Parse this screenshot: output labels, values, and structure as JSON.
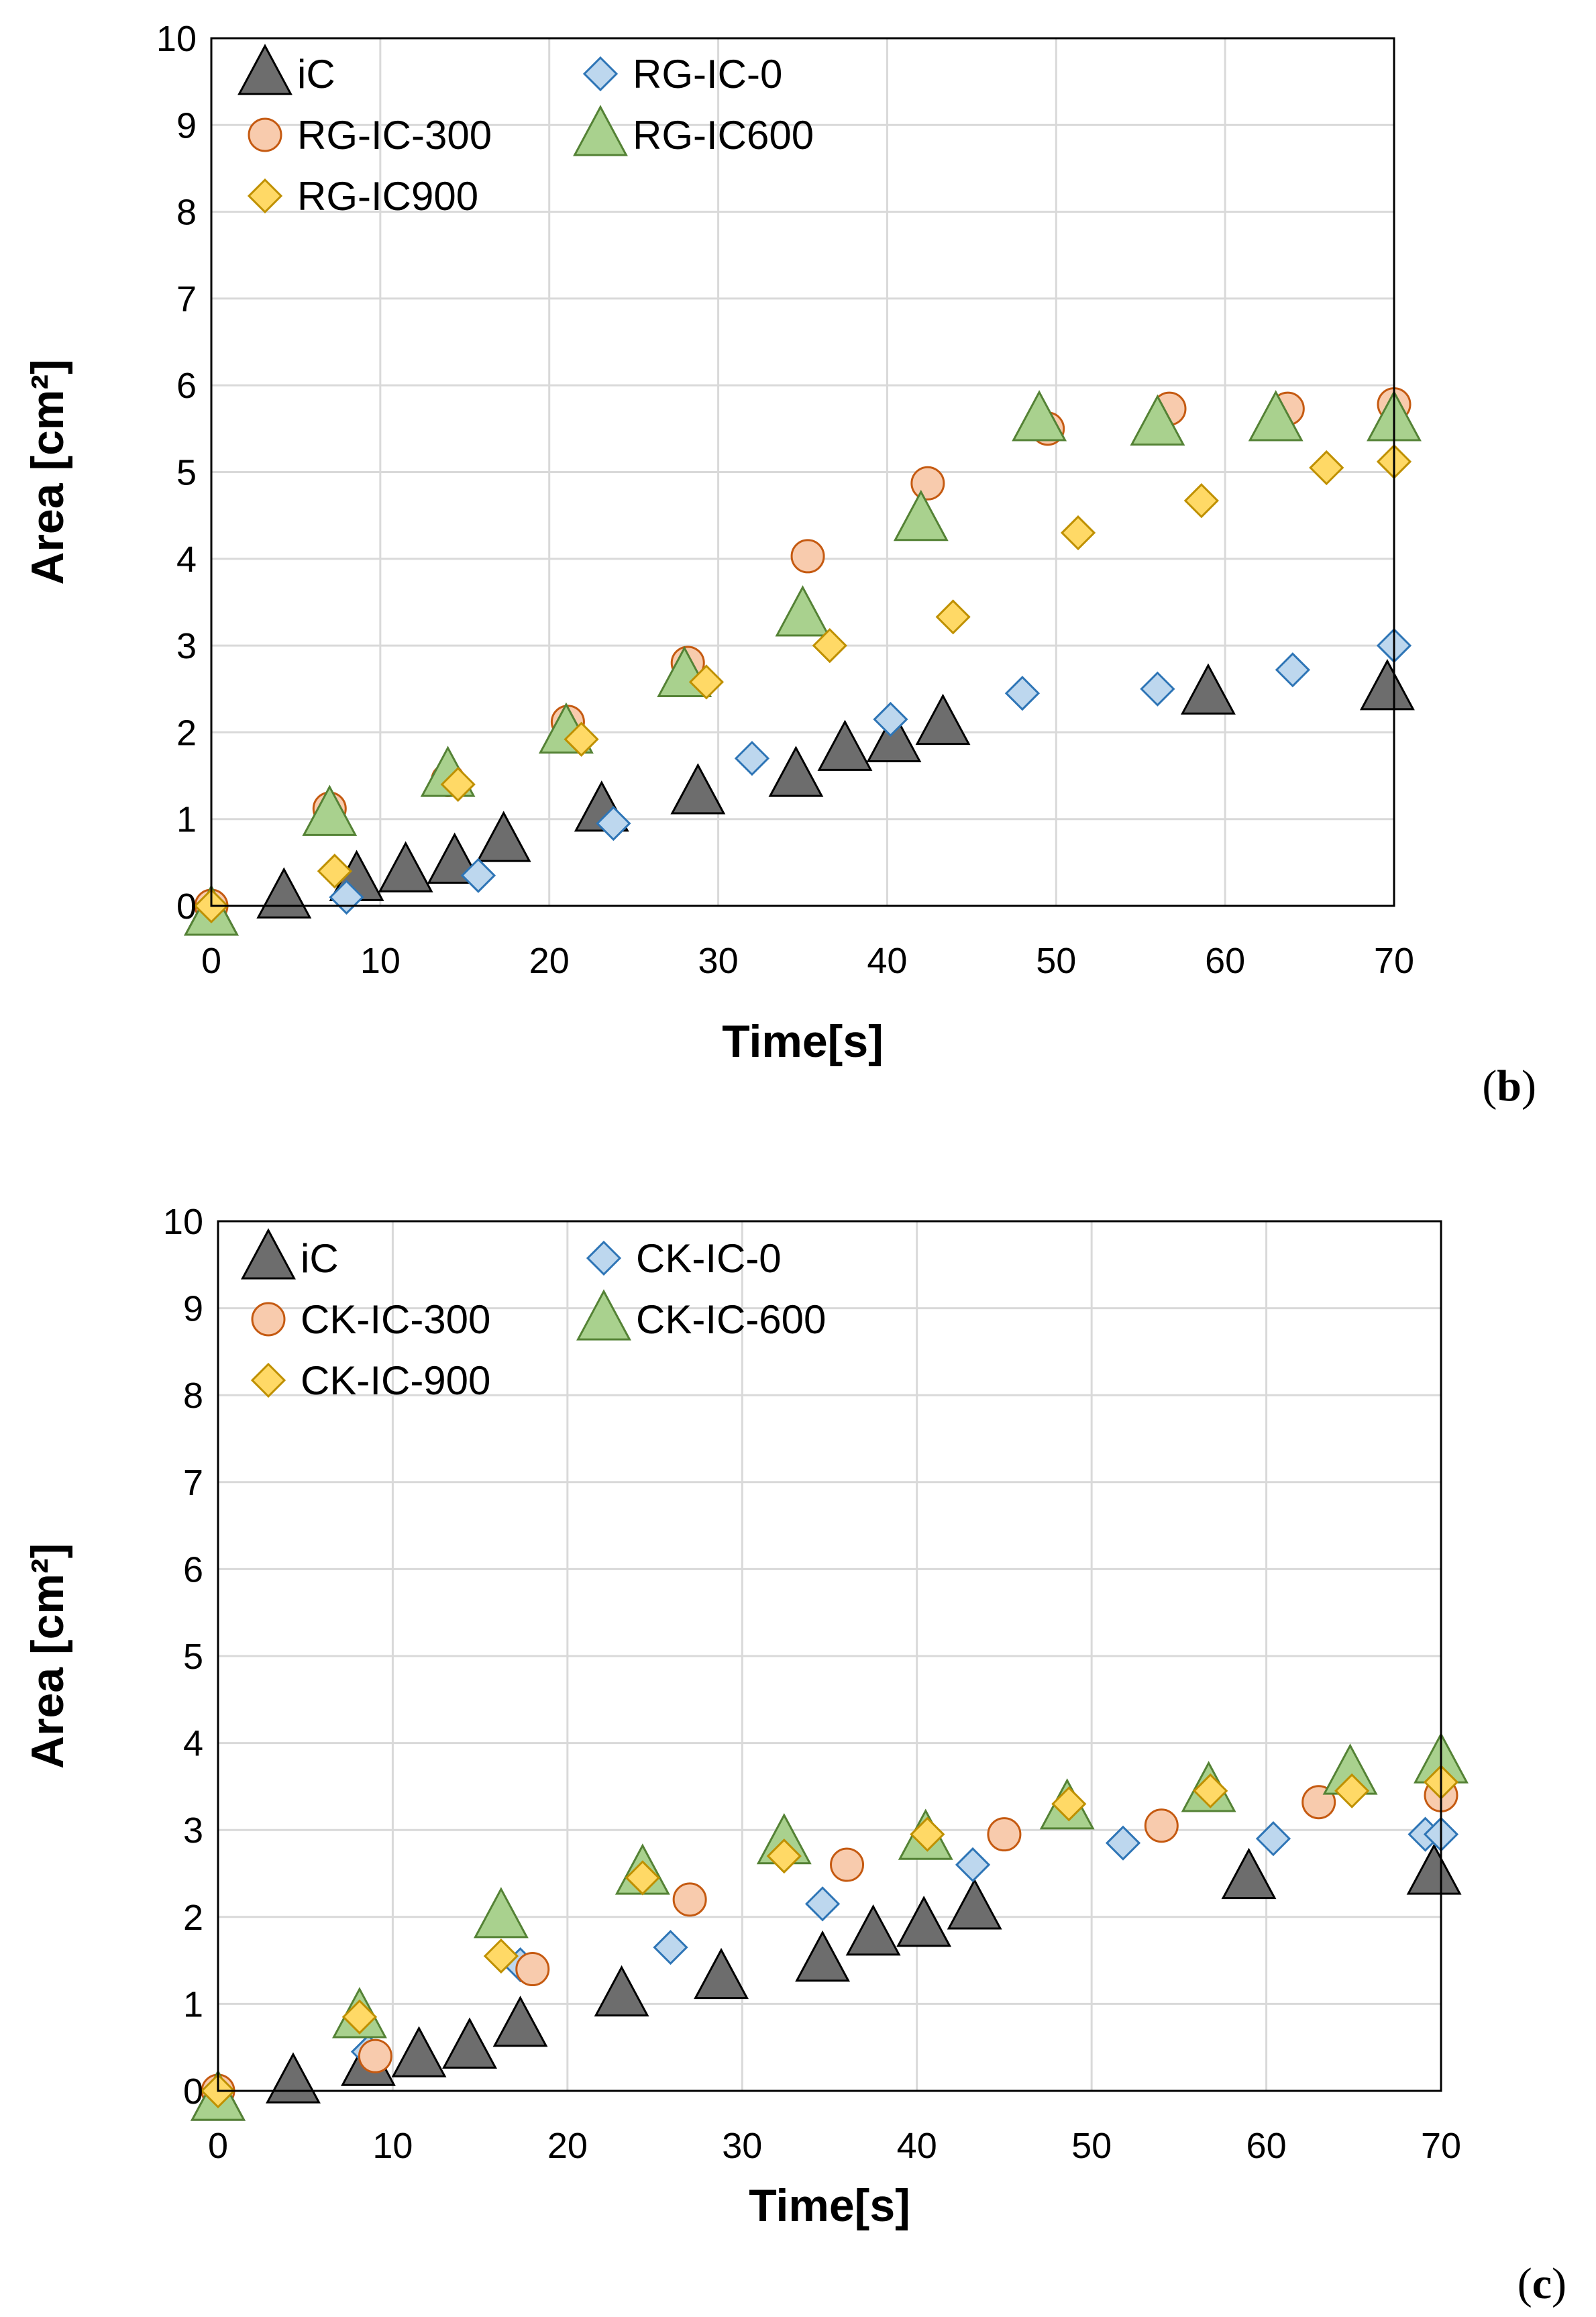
{
  "chart_data": [
    {
      "type": "scatter",
      "panel_label": "b",
      "title": "",
      "xlabel": "Time[s]",
      "ylabel": "Area [cm²]",
      "xlim": [
        0,
        70
      ],
      "ylim": [
        0,
        10
      ],
      "xticks": [
        0,
        10,
        20,
        30,
        40,
        50,
        60,
        70
      ],
      "yticks": [
        0,
        1,
        2,
        3,
        4,
        5,
        6,
        7,
        8,
        9,
        10
      ],
      "grid": true,
      "legend_position": "top-left",
      "series": [
        {
          "name": "iC",
          "marker": "triangle",
          "color": "#6d6d6d",
          "x": [
            0,
            4.3,
            8.6,
            11.5,
            14.4,
            17.3,
            23.1,
            28.8,
            34.6,
            37.5,
            40.4,
            43.3,
            59,
            69.6
          ],
          "y": [
            -0.1,
            0.1,
            0.3,
            0.4,
            0.5,
            0.75,
            1.1,
            1.3,
            1.5,
            1.8,
            1.9,
            2.1,
            2.45,
            2.5
          ]
        },
        {
          "name": "RG-IC-0",
          "marker": "diamond",
          "color": "#bdd7ee",
          "x": [
            0,
            8,
            15.8,
            23.8,
            32,
            40.2,
            48,
            56,
            64,
            70
          ],
          "y": [
            0,
            0.1,
            0.35,
            0.95,
            1.7,
            2.15,
            2.45,
            2.5,
            2.72,
            3
          ]
        },
        {
          "name": "RG-IC-300",
          "marker": "circle",
          "color": "#f8cbad",
          "x": [
            0,
            7,
            14,
            21.1,
            28.2,
            35.3,
            42.4,
            49.5,
            56.7,
            63.7,
            70
          ],
          "y": [
            0,
            1.12,
            1.45,
            2.12,
            2.8,
            4.03,
            4.87,
            5.5,
            5.73,
            5.73,
            5.78
          ]
        },
        {
          "name": "RG-IC600",
          "marker": "triangle",
          "color": "#a9d18e",
          "x": [
            0,
            7,
            14,
            21,
            28,
            35,
            42,
            49,
            56,
            63,
            70
          ],
          "y": [
            -0.1,
            1.05,
            1.5,
            2.0,
            2.65,
            3.35,
            4.45,
            5.6,
            5.55,
            5.6,
            5.6
          ]
        },
        {
          "name": "RG-IC900",
          "marker": "diamond",
          "color": "#ffd966",
          "x": [
            0,
            7.3,
            14.6,
            21.9,
            29.3,
            36.6,
            43.9,
            51.3,
            58.6,
            66,
            70
          ],
          "y": [
            0,
            0.4,
            1.4,
            1.92,
            2.58,
            3.0,
            3.33,
            4.3,
            4.67,
            5.05,
            5.12
          ]
        }
      ]
    },
    {
      "type": "scatter",
      "panel_label": "c",
      "title": "",
      "xlabel": "Time[s]",
      "ylabel": "Area [cm²]",
      "xlim": [
        0,
        70
      ],
      "ylim": [
        0,
        10
      ],
      "xticks": [
        0,
        10,
        20,
        30,
        40,
        50,
        60,
        70
      ],
      "yticks": [
        0,
        1,
        2,
        3,
        4,
        5,
        6,
        7,
        8,
        9,
        10
      ],
      "grid": true,
      "legend_position": "top-left",
      "series": [
        {
          "name": "iC",
          "marker": "triangle",
          "color": "#6d6d6d",
          "x": [
            0,
            4.3,
            8.6,
            11.5,
            14.4,
            17.3,
            23.1,
            28.8,
            34.6,
            37.5,
            40.4,
            43.3,
            59,
            69.6
          ],
          "y": [
            -0.1,
            0.1,
            0.3,
            0.4,
            0.5,
            0.75,
            1.1,
            1.3,
            1.5,
            1.8,
            1.9,
            2.1,
            2.45,
            2.5
          ]
        },
        {
          "name": "CK-IC-0",
          "marker": "diamond",
          "color": "#bdd7ee",
          "x": [
            0,
            8.6,
            17.3,
            25.9,
            34.6,
            43.2,
            51.8,
            60.4,
            69.1,
            70
          ],
          "y": [
            0,
            0.45,
            1.45,
            1.65,
            2.15,
            2.6,
            2.85,
            2.9,
            2.95,
            2.95
          ]
        },
        {
          "name": "CK-IC-300",
          "marker": "circle",
          "color": "#f8cbad",
          "x": [
            0,
            9,
            18,
            27,
            36,
            45,
            54,
            63,
            70
          ],
          "y": [
            0,
            0.4,
            1.4,
            2.2,
            2.6,
            2.95,
            3.05,
            3.32,
            3.4
          ]
        },
        {
          "name": "CK-IC-600",
          "marker": "triangle",
          "color": "#a9d18e",
          "x": [
            0,
            8.1,
            16.2,
            24.3,
            32.4,
            40.5,
            48.6,
            56.7,
            64.8,
            70
          ],
          "y": [
            -0.1,
            0.85,
            2.0,
            2.5,
            2.85,
            2.9,
            3.25,
            3.45,
            3.65,
            3.78
          ]
        },
        {
          "name": "CK-IC-900",
          "marker": "diamond",
          "color": "#ffd966",
          "x": [
            0,
            8.1,
            16.2,
            24.3,
            32.4,
            40.6,
            48.7,
            56.8,
            64.9,
            70
          ],
          "y": [
            0,
            0.85,
            1.55,
            2.45,
            2.7,
            2.95,
            3.3,
            3.45,
            3.45,
            3.55
          ]
        }
      ]
    }
  ]
}
